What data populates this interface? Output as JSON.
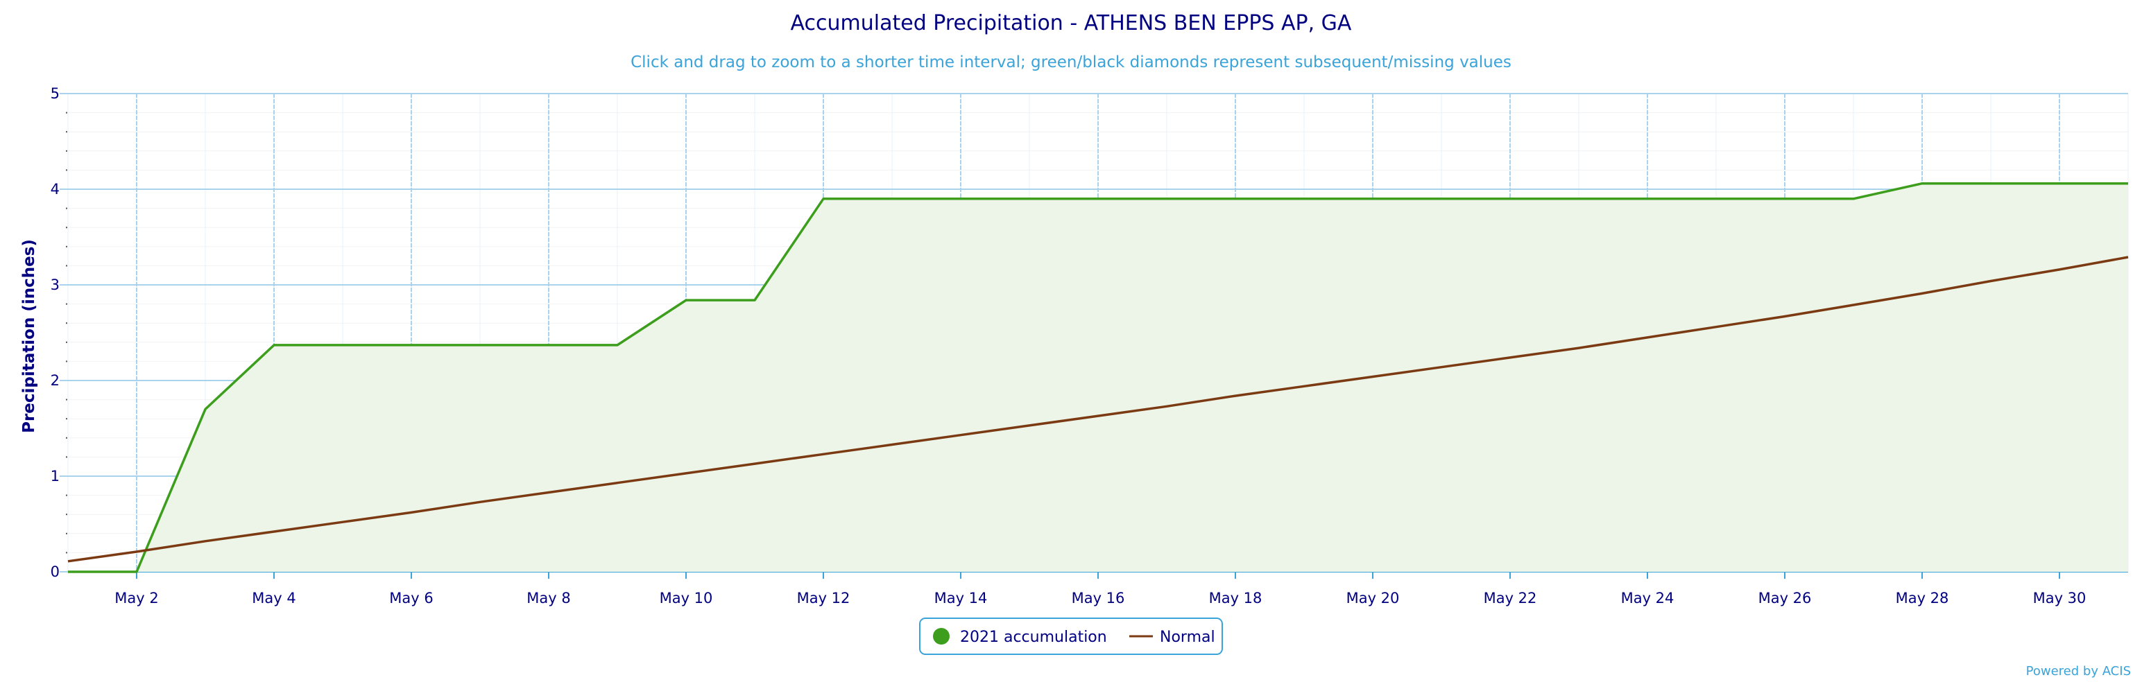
{
  "chart_data": {
    "type": "line",
    "title": "Accumulated Precipitation - ATHENS BEN EPPS AP, GA",
    "subtitle": "Click and drag to zoom to a shorter time interval; green/black diamonds represent subsequent/missing values",
    "ylabel": "Precipitation (inches)",
    "xlabel": "",
    "x_day_range": [
      1,
      31
    ],
    "ylim": [
      0,
      5
    ],
    "y_ticks": [
      "0",
      "1",
      "2",
      "3",
      "4",
      "5"
    ],
    "x_ticks": [
      {
        "day": 2,
        "label": "May 2"
      },
      {
        "day": 4,
        "label": "May 4"
      },
      {
        "day": 6,
        "label": "May 6"
      },
      {
        "day": 8,
        "label": "May 8"
      },
      {
        "day": 10,
        "label": "May 10"
      },
      {
        "day": 12,
        "label": "May 12"
      },
      {
        "day": 14,
        "label": "May 14"
      },
      {
        "day": 16,
        "label": "May 16"
      },
      {
        "day": 18,
        "label": "May 18"
      },
      {
        "day": 20,
        "label": "May 20"
      },
      {
        "day": 22,
        "label": "May 22"
      },
      {
        "day": 24,
        "label": "May 24"
      },
      {
        "day": 26,
        "label": "May 26"
      },
      {
        "day": 28,
        "label": "May 28"
      },
      {
        "day": 30,
        "label": "May 30"
      }
    ],
    "grid": true,
    "legend_position": "bottom-center",
    "series": [
      {
        "name": "2021 accumulation",
        "color": "#3c9e1c",
        "fill": "#ecf5e8",
        "style": "area",
        "x": [
          1,
          2,
          3,
          4,
          5,
          6,
          7,
          8,
          9,
          10,
          11,
          12,
          13,
          14,
          15,
          16,
          17,
          18,
          19,
          20,
          21,
          22,
          23,
          24,
          25,
          26,
          27,
          28,
          29,
          30,
          31
        ],
        "y": [
          0.0,
          0.0,
          1.7,
          2.37,
          2.37,
          2.37,
          2.37,
          2.37,
          2.37,
          2.84,
          2.84,
          3.9,
          3.9,
          3.9,
          3.9,
          3.9,
          3.9,
          3.9,
          3.9,
          3.9,
          3.9,
          3.9,
          3.9,
          3.9,
          3.9,
          3.9,
          3.9,
          4.06,
          4.06,
          4.06,
          4.06
        ]
      },
      {
        "name": "Normal",
        "color": "#7b3a12",
        "style": "line",
        "x": [
          1,
          2,
          3,
          4,
          5,
          6,
          7,
          8,
          9,
          10,
          11,
          12,
          13,
          14,
          15,
          16,
          17,
          18,
          19,
          20,
          21,
          22,
          23,
          24,
          25,
          26,
          27,
          28,
          29,
          30,
          31
        ],
        "y": [
          0.11,
          0.21,
          0.32,
          0.42,
          0.52,
          0.62,
          0.73,
          0.83,
          0.93,
          1.03,
          1.13,
          1.23,
          1.33,
          1.43,
          1.53,
          1.63,
          1.73,
          1.84,
          1.94,
          2.04,
          2.14,
          2.24,
          2.34,
          2.45,
          2.56,
          2.67,
          2.79,
          2.91,
          3.04,
          3.16,
          3.29
        ]
      }
    ],
    "legend": [
      {
        "label": "2021 accumulation",
        "symbol": "circle",
        "color": "#3c9e1c"
      },
      {
        "label": "Normal",
        "symbol": "line",
        "color": "#7b3a12"
      }
    ],
    "credit": "Powered by ACIS"
  }
}
